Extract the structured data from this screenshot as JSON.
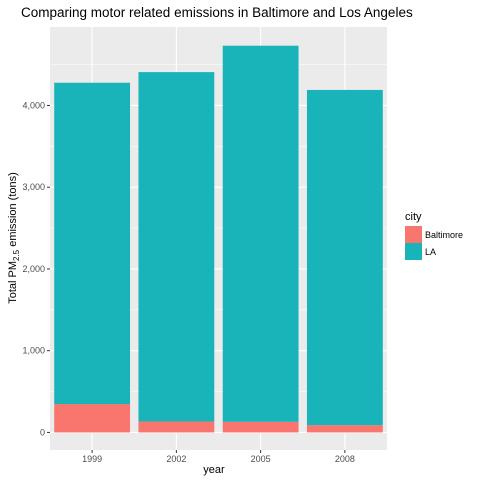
{
  "chart_data": {
    "type": "bar",
    "stacked": true,
    "title": "Comparing motor related emissions in Baltimore and Los Angeles",
    "xlabel": "year",
    "ylabel": {
      "prefix": "Total PM",
      "subscript": "2.5",
      "suffix": " emission (tons)"
    },
    "categories": [
      "1999",
      "2002",
      "2005",
      "2008"
    ],
    "series": [
      {
        "name": "Baltimore",
        "color": "#F8766D",
        "values": [
          347,
          134,
          130,
          89
        ]
      },
      {
        "name": "LA",
        "color": "#18B4BA",
        "values": [
          3931,
          4274,
          4601,
          4101
        ]
      }
    ],
    "ylim": [
      -215,
      4960
    ],
    "yticks": [
      0,
      1000,
      2000,
      3000,
      4000
    ],
    "ytick_labels": [
      "0",
      "1,000",
      "2,000",
      "3,000",
      "4,000"
    ],
    "grid": true,
    "legend": {
      "title": "city",
      "position": "right"
    },
    "panel_background": "#EBEBEB",
    "gridline_color": "#FFFFFF"
  }
}
